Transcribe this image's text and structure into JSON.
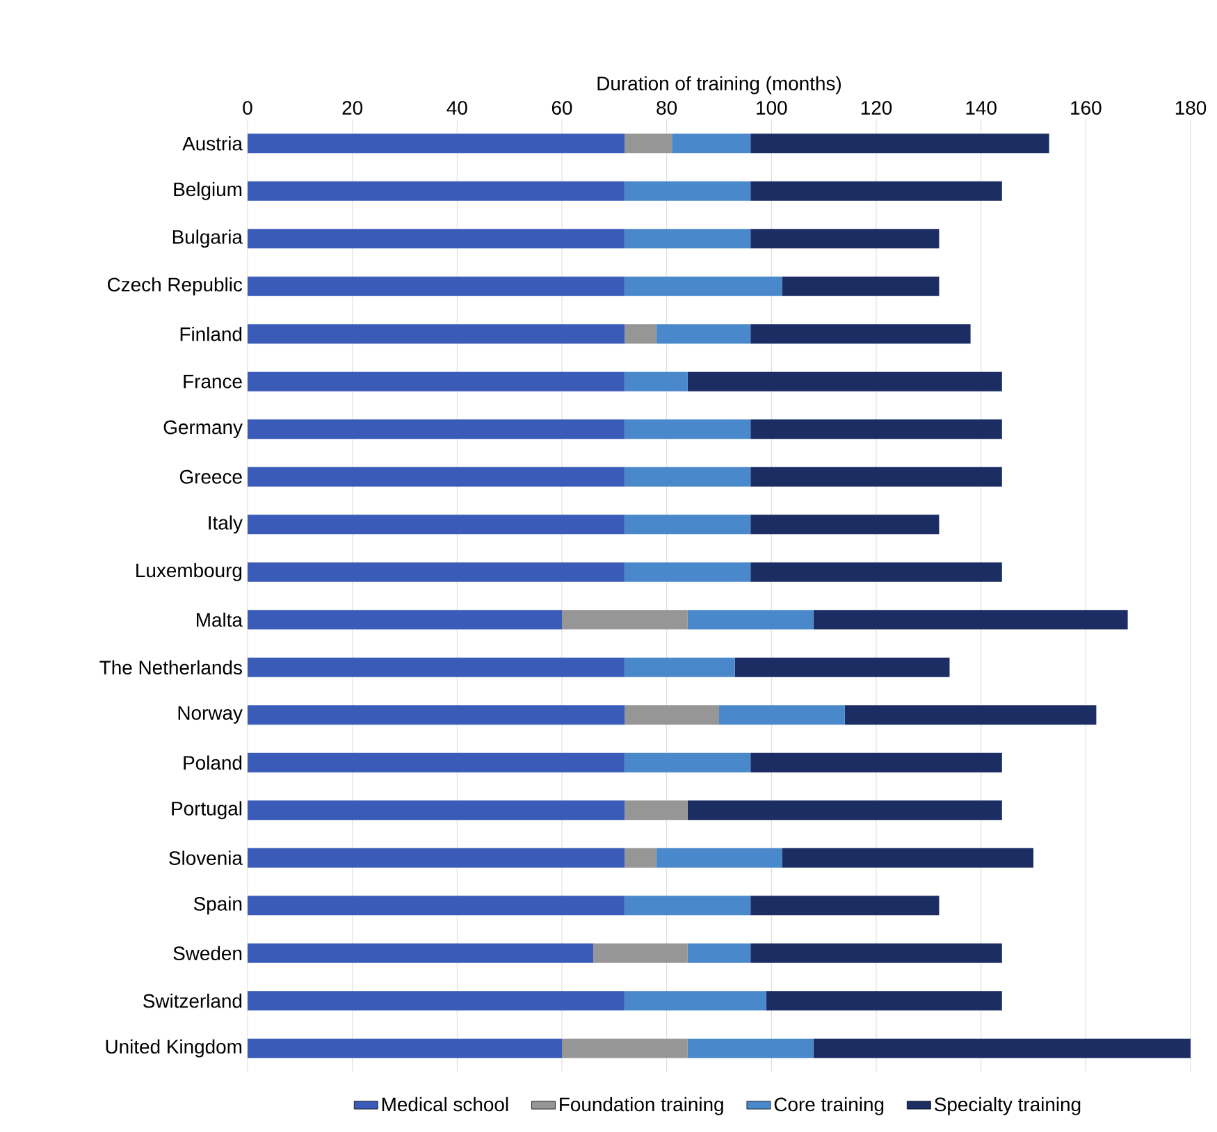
{
  "chart_data": {
    "type": "bar",
    "orientation": "horizontal",
    "stacked": true,
    "xlabel": "Duration of training (months)",
    "categories": [
      "Austria",
      "Belgium",
      "Bulgaria",
      "Czech Republic",
      "Finland",
      "France",
      "Germany",
      "Greece",
      "Italy",
      "Luxembourg",
      "Malta",
      "The Netherlands",
      "Norway",
      "Poland",
      "Portugal",
      "Slovenia",
      "Spain",
      "Sweden",
      "Switzerland",
      "United Kingdom"
    ],
    "series": [
      {
        "name": "Medical school",
        "color": "#3a5bb8",
        "values": [
          72,
          72,
          72,
          72,
          72,
          72,
          72,
          72,
          72,
          72,
          60,
          72,
          72,
          72,
          72,
          72,
          72,
          66,
          72,
          60
        ]
      },
      {
        "name": "Foundation training",
        "color": "#969696",
        "values": [
          9,
          0,
          0,
          0,
          6,
          0,
          0,
          0,
          0,
          0,
          24,
          0,
          18,
          0,
          12,
          6,
          0,
          18,
          0,
          24
        ]
      },
      {
        "name": "Core training",
        "color": "#4a88cc",
        "values": [
          15,
          24,
          24,
          30,
          18,
          12,
          24,
          24,
          24,
          24,
          24,
          21,
          24,
          24,
          0,
          24,
          24,
          12,
          27,
          24
        ]
      },
      {
        "name": "Specialty training",
        "color": "#1b2d63",
        "values": [
          57,
          48,
          36,
          30,
          42,
          60,
          48,
          48,
          36,
          48,
          60,
          41,
          48,
          48,
          60,
          48,
          36,
          48,
          45,
          72
        ]
      }
    ],
    "xlim": [
      0,
      180
    ],
    "xticks": [
      0,
      20,
      40,
      60,
      80,
      100,
      120,
      140,
      160,
      180
    ],
    "grid": "x",
    "legend": "bottom"
  }
}
